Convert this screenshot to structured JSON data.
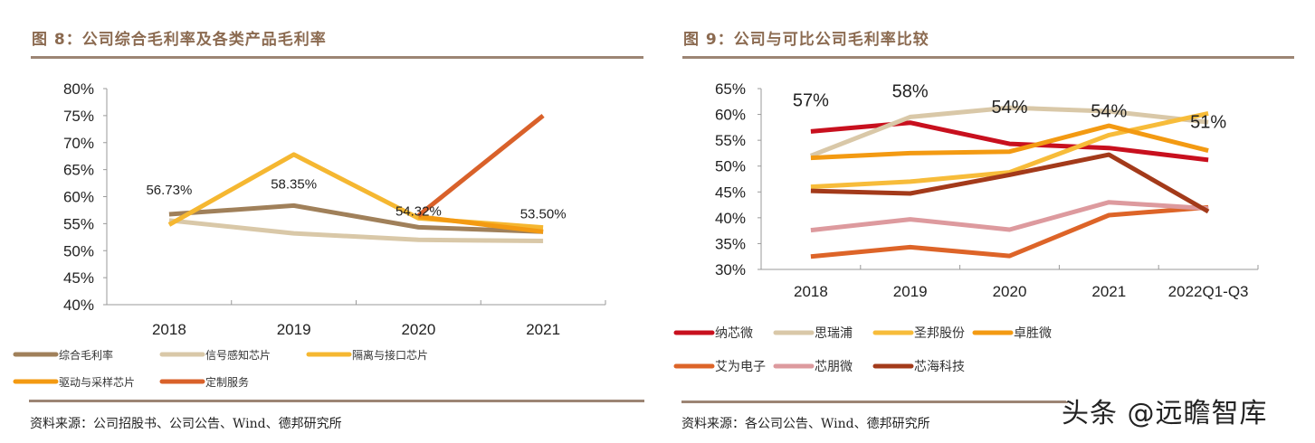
{
  "watermark": "头条 @远瞻智库",
  "chart_data": [
    {
      "type": "line",
      "title": "图 8：公司综合毛利率及各类产品毛利率",
      "source": "资料来源：公司招股书、公司公告、Wind、德邦研究所",
      "categories": [
        "2018",
        "2019",
        "2020",
        "2021"
      ],
      "ylim": [
        40,
        80
      ],
      "yticks": [
        40,
        45,
        50,
        55,
        60,
        65,
        70,
        75,
        80
      ],
      "ytick_labels": [
        "40%",
        "45%",
        "50%",
        "55%",
        "60%",
        "65%",
        "70%",
        "75%",
        "80%"
      ],
      "xlabel": "",
      "ylabel": "",
      "grid": false,
      "legend_position": "bottom",
      "series": [
        {
          "name": "综合毛利率",
          "color": "#A0805A",
          "values": [
            56.73,
            58.35,
            54.32,
            53.5
          ]
        },
        {
          "name": "信号感知芯片",
          "color": "#D9C8A8",
          "values": [
            55.6,
            53.2,
            52.0,
            51.8
          ]
        },
        {
          "name": "隔离与接口芯片",
          "color": "#F5B731",
          "values": [
            54.8,
            67.8,
            56.0,
            54.3
          ]
        },
        {
          "name": "驱动与采样芯片",
          "color": "#F39A12",
          "values": [
            null,
            null,
            56.3,
            53.5
          ]
        },
        {
          "name": "定制服务",
          "color": "#D9612A",
          "values": [
            null,
            null,
            56.5,
            75.0
          ]
        }
      ],
      "annotations": [
        {
          "category": "2018",
          "text": "56.73%",
          "value": 60.4
        },
        {
          "category": "2019",
          "text": "58.35%",
          "value": 61.5
        },
        {
          "category": "2020",
          "text": "54.32%",
          "value": 56.5
        },
        {
          "category": "2021",
          "text": "53.50%",
          "value": 56.0
        }
      ]
    },
    {
      "type": "line",
      "title": "图 9：公司与可比公司毛利率比较",
      "source": "资料来源：各公司公告、Wind、德邦研究所",
      "categories": [
        "2018",
        "2019",
        "2020",
        "2021",
        "2022Q1-Q3"
      ],
      "ylim": [
        30,
        65
      ],
      "yticks": [
        30,
        35,
        40,
        45,
        50,
        55,
        60,
        65
      ],
      "ytick_labels": [
        "30%",
        "35%",
        "40%",
        "45%",
        "50%",
        "55%",
        "60%",
        "65%"
      ],
      "xlabel": "",
      "ylabel": "",
      "grid": false,
      "legend_position": "bottom",
      "series": [
        {
          "name": "纳芯微",
          "color": "#C8101E",
          "values": [
            56.7,
            58.4,
            54.3,
            53.5,
            51.2
          ]
        },
        {
          "name": "思瑞浦",
          "color": "#D9C8A8",
          "values": [
            52.0,
            59.5,
            61.3,
            60.6,
            58.5
          ]
        },
        {
          "name": "圣邦股份",
          "color": "#F7BC3A",
          "values": [
            46.0,
            47.0,
            48.8,
            56.0,
            60.2
          ]
        },
        {
          "name": "卓胜微",
          "color": "#F39A12",
          "values": [
            51.6,
            52.5,
            52.8,
            57.8,
            53.0
          ]
        },
        {
          "name": "艾为电子",
          "color": "#DD6428",
          "values": [
            32.5,
            34.3,
            32.6,
            40.5,
            42.0
          ]
        },
        {
          "name": "芯朋微",
          "color": "#DD9A9E",
          "values": [
            37.6,
            39.7,
            37.7,
            43.0,
            41.8
          ]
        },
        {
          "name": "芯海科技",
          "color": "#A33A1A",
          "values": [
            45.2,
            44.7,
            48.3,
            52.2,
            41.2
          ]
        }
      ],
      "annotations": [
        {
          "category": "2018",
          "text": "57%",
          "value": 61.6
        },
        {
          "category": "2019",
          "text": "58%",
          "value": 63.3
        },
        {
          "category": "2020",
          "text": "54%",
          "value": 60.3
        },
        {
          "category": "2021",
          "text": "54%",
          "value": 59.5
        },
        {
          "category": "2022Q1-Q3",
          "text": "51%",
          "value": 57.4
        }
      ]
    }
  ]
}
